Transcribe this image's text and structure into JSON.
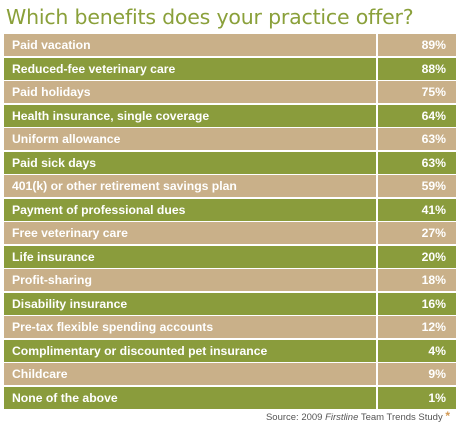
{
  "chart_data": {
    "type": "table",
    "title": "Which benefits does your practice offer?",
    "categories": [
      "Paid vacation",
      "Reduced-fee veterinary care",
      "Paid holidays",
      "Health insurance, single coverage",
      "Uniform allowance",
      "Paid sick days",
      "401(k) or other retirement savings plan",
      "Payment of professional dues",
      "Free veterinary care",
      "Life insurance",
      "Profit-sharing",
      "Disability insurance",
      "Pre-tax flexible spending accounts",
      "Complimentary or discounted pet insurance",
      "Childcare",
      "None of the above"
    ],
    "values": [
      89,
      88,
      75,
      64,
      63,
      63,
      59,
      41,
      27,
      20,
      18,
      16,
      12,
      4,
      9,
      1
    ],
    "value_labels": [
      "89%",
      "88%",
      "75%",
      "64%",
      "63%",
      "63%",
      "59%",
      "41%",
      "27%",
      "20%",
      "18%",
      "16%",
      "12%",
      "4%",
      "9%",
      "1%"
    ],
    "source": {
      "prefix": "Source: 2009 ",
      "italic": "Firstline",
      "suffix": " Team Trends Study",
      "mark": "*"
    }
  },
  "colors": {
    "row_odd": "#c9b089",
    "row_even": "#8a9c3c",
    "title": "#8aa03a",
    "asterisk": "#d39a54"
  }
}
